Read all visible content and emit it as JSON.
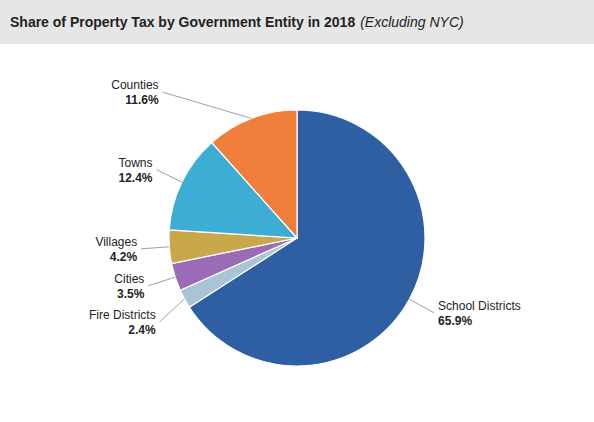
{
  "chart_data": {
    "type": "pie",
    "title": "Share of Property Tax by Government Entity in 2018",
    "subtitle": "(Excluding NYC)",
    "categories": [
      "School Districts",
      "Fire Districts",
      "Cities",
      "Villages",
      "Towns",
      "Counties"
    ],
    "values": [
      65.9,
      2.4,
      3.5,
      4.2,
      12.4,
      11.6
    ],
    "value_labels": [
      "65.9%",
      "2.4%",
      "3.5%",
      "4.2%",
      "12.4%",
      "11.6%"
    ],
    "colors": [
      "#2E5FA3",
      "#A8C4D5",
      "#9B6BB5",
      "#C9A84C",
      "#3DADD4",
      "#F07F3C"
    ],
    "data_labels": true
  }
}
